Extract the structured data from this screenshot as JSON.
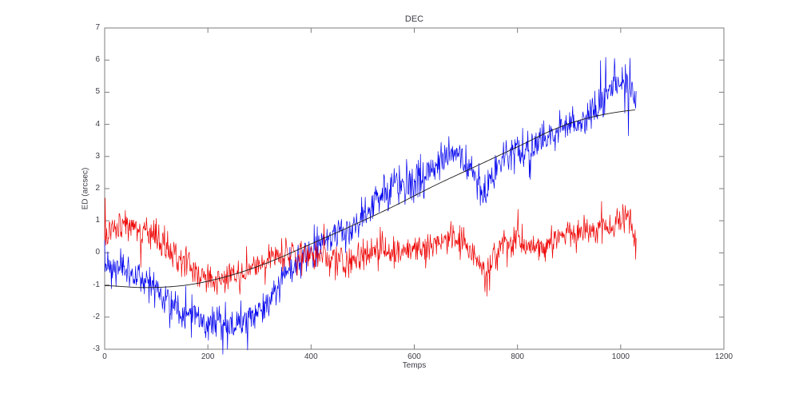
{
  "chart": {
    "title": "DEC",
    "xlabel": "Temps",
    "ylabel": "ED (arcsec)"
  },
  "colors": {
    "background": "#ffffff",
    "axis": "#7d7d7d",
    "text": "#3c3c46",
    "series_blue": "#0000ee",
    "series_red": "#ee0000",
    "trend": "#1a1a1a"
  },
  "chart_data": {
    "type": "line",
    "title": "DEC",
    "xlabel": "Temps",
    "ylabel": "ED (arcsec)",
    "xlim": [
      0,
      1200
    ],
    "ylim": [
      -3,
      7
    ],
    "x_ticks": [
      0,
      200,
      400,
      600,
      800,
      1000,
      1200
    ],
    "y_ticks": [
      -3,
      -2,
      -1,
      0,
      1,
      2,
      3,
      4,
      5,
      6,
      7
    ],
    "grid": false,
    "legend": null,
    "box": true,
    "n_points": 1031,
    "series": [
      {
        "name": "blue-noisy-series",
        "color": "#0000ee",
        "style": "noisy-line",
        "noise_sigma": 0.27,
        "spike_prob": 0.035,
        "spike_mult": 2.0,
        "seed": 7,
        "width": 0.7,
        "control_points": [
          [
            0,
            -0.35
          ],
          [
            30,
            -0.55
          ],
          [
            60,
            -0.7
          ],
          [
            90,
            -1.0
          ],
          [
            120,
            -1.4
          ],
          [
            150,
            -1.8
          ],
          [
            180,
            -2.0
          ],
          [
            210,
            -2.15
          ],
          [
            235,
            -2.4
          ],
          [
            255,
            -2.25
          ],
          [
            280,
            -2.05
          ],
          [
            300,
            -1.8
          ],
          [
            320,
            -1.35
          ],
          [
            345,
            -0.8
          ],
          [
            370,
            -0.35
          ],
          [
            395,
            0.0
          ],
          [
            420,
            0.3
          ],
          [
            450,
            0.55
          ],
          [
            475,
            0.8
          ],
          [
            500,
            1.15
          ],
          [
            525,
            1.7
          ],
          [
            550,
            1.95
          ],
          [
            575,
            2.15
          ],
          [
            600,
            2.2
          ],
          [
            625,
            2.4
          ],
          [
            650,
            2.95
          ],
          [
            668,
            3.2
          ],
          [
            685,
            3.05
          ],
          [
            705,
            2.65
          ],
          [
            722,
            2.2
          ],
          [
            737,
            1.75
          ],
          [
            752,
            2.35
          ],
          [
            768,
            2.85
          ],
          [
            785,
            3.05
          ],
          [
            810,
            3.25
          ],
          [
            840,
            3.5
          ],
          [
            865,
            3.65
          ],
          [
            890,
            3.95
          ],
          [
            915,
            4.05
          ],
          [
            935,
            4.2
          ],
          [
            950,
            4.5
          ],
          [
            965,
            4.8
          ],
          [
            980,
            5.05
          ],
          [
            995,
            5.2
          ],
          [
            1012,
            5.3
          ],
          [
            1022,
            5.2
          ],
          [
            1030,
            4.6
          ]
        ],
        "forced_points": [
          [
            238,
            -3.0
          ],
          [
            988,
            6.05
          ],
          [
            1029,
            4.5
          ]
        ]
      },
      {
        "name": "red-noisy-series",
        "color": "#ee0000",
        "style": "noisy-line",
        "noise_sigma": 0.24,
        "spike_prob": 0.035,
        "spike_mult": 2.0,
        "seed": 13,
        "width": 0.7,
        "control_points": [
          [
            0,
            0.55
          ],
          [
            25,
            0.75
          ],
          [
            50,
            0.85
          ],
          [
            75,
            0.7
          ],
          [
            100,
            0.45
          ],
          [
            125,
            0.1
          ],
          [
            150,
            -0.25
          ],
          [
            175,
            -0.55
          ],
          [
            200,
            -0.75
          ],
          [
            225,
            -0.8
          ],
          [
            250,
            -0.7
          ],
          [
            275,
            -0.55
          ],
          [
            300,
            -0.4
          ],
          [
            325,
            -0.2
          ],
          [
            350,
            -0.05
          ],
          [
            375,
            0.05
          ],
          [
            400,
            -0.05
          ],
          [
            430,
            -0.15
          ],
          [
            455,
            -0.25
          ],
          [
            480,
            -0.25
          ],
          [
            505,
            -0.1
          ],
          [
            530,
            0.0
          ],
          [
            555,
            0.1
          ],
          [
            580,
            0.1
          ],
          [
            605,
            0.1
          ],
          [
            630,
            0.2
          ],
          [
            655,
            0.35
          ],
          [
            678,
            0.45
          ],
          [
            700,
            0.3
          ],
          [
            718,
            -0.1
          ],
          [
            737,
            -0.7
          ],
          [
            755,
            -0.15
          ],
          [
            770,
            0.2
          ],
          [
            790,
            0.3
          ],
          [
            815,
            0.25
          ],
          [
            840,
            0.25
          ],
          [
            865,
            0.35
          ],
          [
            890,
            0.5
          ],
          [
            915,
            0.6
          ],
          [
            940,
            0.7
          ],
          [
            960,
            0.8
          ],
          [
            980,
            0.95
          ],
          [
            1000,
            1.05
          ],
          [
            1015,
            1.05
          ],
          [
            1030,
            0.35
          ]
        ],
        "forced_points": [
          [
            218,
            -1.3
          ],
          [
            741,
            -1.35
          ],
          [
            1029,
            -0.2
          ]
        ]
      },
      {
        "name": "black-trend-line",
        "color": "#1a1a1a",
        "style": "smooth-line",
        "noise_sigma": 0,
        "seed": 1,
        "width": 0.9,
        "control_points": [
          [
            0,
            -1.02
          ],
          [
            80,
            -1.08
          ],
          [
            160,
            -1.0
          ],
          [
            240,
            -0.72
          ],
          [
            320,
            -0.28
          ],
          [
            400,
            0.28
          ],
          [
            480,
            0.85
          ],
          [
            560,
            1.45
          ],
          [
            640,
            2.1
          ],
          [
            720,
            2.7
          ],
          [
            800,
            3.3
          ],
          [
            880,
            3.9
          ],
          [
            950,
            4.25
          ],
          [
            1030,
            4.45
          ]
        ],
        "forced_points": []
      }
    ]
  }
}
